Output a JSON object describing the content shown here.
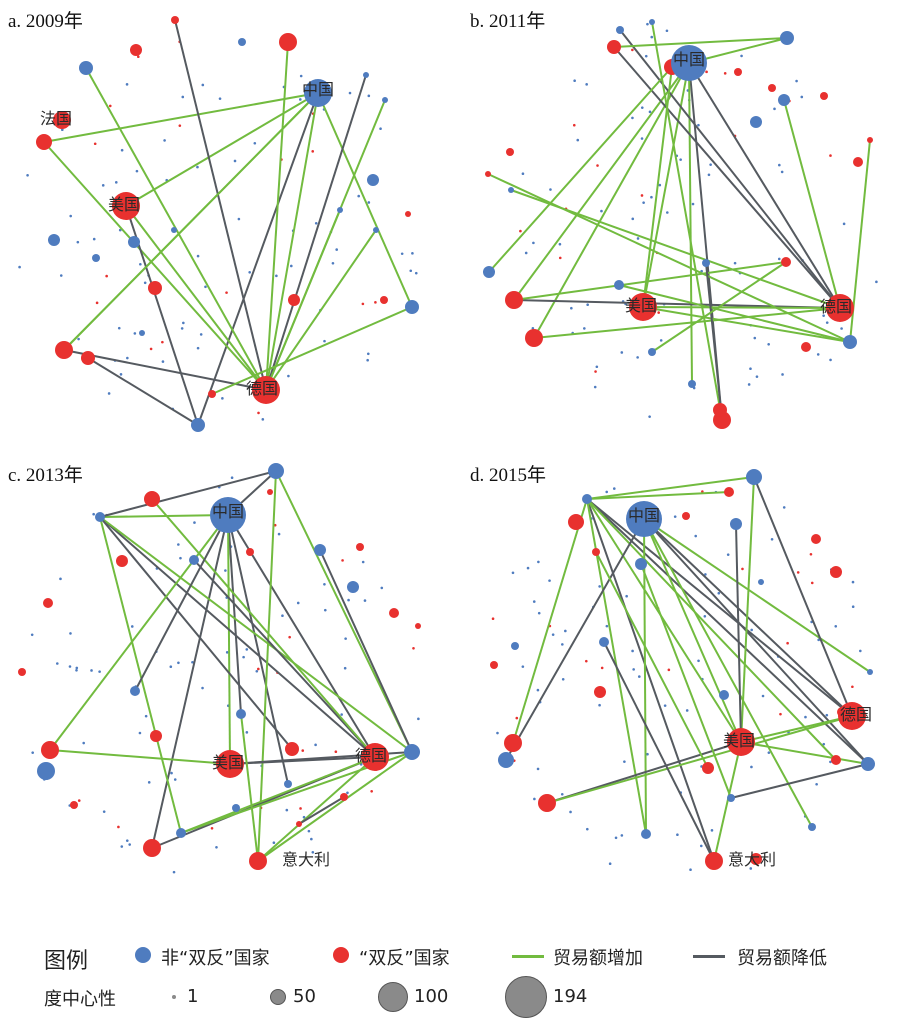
{
  "panels": [
    {
      "label": "a. 2009年",
      "nodes": [
        {
          "id": "china",
          "name": "中国",
          "color": "blue",
          "size": "lg"
        },
        {
          "id": "usa",
          "name": "美国",
          "color": "red",
          "size": "lg"
        },
        {
          "id": "germany",
          "name": "德国",
          "color": "red",
          "size": "lg"
        },
        {
          "id": "france",
          "name": "法国",
          "color": "red",
          "size": "md"
        }
      ]
    },
    {
      "label": "b. 2011年",
      "nodes": [
        {
          "id": "china",
          "name": "中国",
          "color": "blue",
          "size": "xl"
        },
        {
          "id": "usa",
          "name": "美国",
          "color": "red",
          "size": "lg"
        },
        {
          "id": "germany",
          "name": "德国",
          "color": "red",
          "size": "lg"
        }
      ]
    },
    {
      "label": "c. 2013年",
      "nodes": [
        {
          "id": "china",
          "name": "中国",
          "color": "blue",
          "size": "xl"
        },
        {
          "id": "usa",
          "name": "美国",
          "color": "red",
          "size": "lg"
        },
        {
          "id": "germany",
          "name": "德国",
          "color": "red",
          "size": "lg"
        },
        {
          "id": "italy",
          "name": "意大利",
          "color": "red",
          "size": "md"
        }
      ]
    },
    {
      "label": "d. 2015年",
      "nodes": [
        {
          "id": "china",
          "name": "中国",
          "color": "blue",
          "size": "xl"
        },
        {
          "id": "usa",
          "name": "美国",
          "color": "red",
          "size": "lg"
        },
        {
          "id": "germany",
          "name": "德国",
          "color": "red",
          "size": "lg"
        },
        {
          "id": "italy",
          "name": "意大利",
          "color": "red",
          "size": "md"
        }
      ]
    }
  ],
  "legend": {
    "title": "图例",
    "non_double_anti": "非“双反”国家",
    "double_anti": "“双反”国家",
    "trade_increase": "贸易额增加",
    "trade_decrease": "贸易额降低",
    "centrality_title": "度中心性",
    "centrality_values": [
      "1",
      "50",
      "100",
      "194"
    ]
  },
  "colors": {
    "blue": "#4f7cbf",
    "red": "#e8312f",
    "green": "#72bb3f",
    "gray": "#555a60",
    "size_gray": "#8a8a8a"
  }
}
